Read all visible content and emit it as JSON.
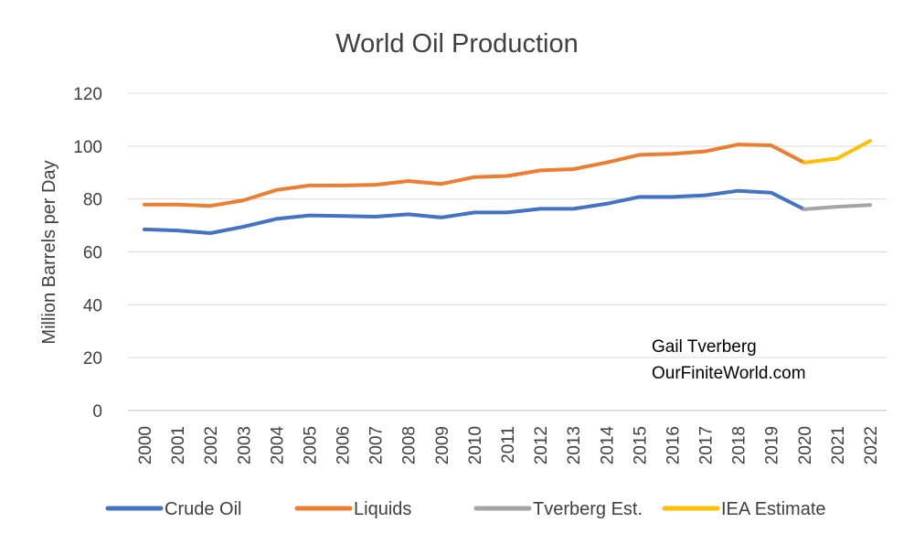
{
  "chart_data": {
    "type": "line",
    "title": "World Oil Production",
    "xlabel": "",
    "ylabel": "Million Barrels per Day",
    "ylim": [
      0,
      120
    ],
    "yticks": [
      0,
      20,
      40,
      60,
      80,
      100,
      120
    ],
    "grid": true,
    "legend_position": "bottom",
    "annotations": [
      "Gail Tverberg",
      "OurFiniteWorld.com"
    ],
    "categories": [
      "2000",
      "2001",
      "2002",
      "2003",
      "2004",
      "2005",
      "2006",
      "2007",
      "2008",
      "2009",
      "2010",
      "2011",
      "2012",
      "2013",
      "2014",
      "2015",
      "2016",
      "2017",
      "2018",
      "2019",
      "2020",
      "2021",
      "2022"
    ],
    "series": [
      {
        "name": "Crude Oil",
        "color": "#4472c4",
        "x": [
          "2000",
          "2001",
          "2002",
          "2003",
          "2004",
          "2005",
          "2006",
          "2007",
          "2008",
          "2009",
          "2010",
          "2011",
          "2012",
          "2013",
          "2014",
          "2015",
          "2016",
          "2017",
          "2018",
          "2019",
          "2020"
        ],
        "values": [
          68.5,
          68.1,
          67.1,
          69.5,
          72.5,
          73.8,
          73.6,
          73.3,
          74.2,
          73.0,
          74.9,
          74.9,
          76.3,
          76.3,
          78.2,
          80.8,
          80.8,
          81.4,
          83.1,
          82.4,
          76.1
        ]
      },
      {
        "name": "Liquids",
        "color": "#ed7d31",
        "x": [
          "2000",
          "2001",
          "2002",
          "2003",
          "2004",
          "2005",
          "2006",
          "2007",
          "2008",
          "2009",
          "2010",
          "2011",
          "2012",
          "2013",
          "2014",
          "2015",
          "2016",
          "2017",
          "2018",
          "2019",
          "2020"
        ],
        "values": [
          77.9,
          77.9,
          77.4,
          79.5,
          83.4,
          85.1,
          85.1,
          85.4,
          86.8,
          85.7,
          88.3,
          88.7,
          90.8,
          91.3,
          93.8,
          96.7,
          97.1,
          98.0,
          100.6,
          100.3,
          93.8
        ]
      },
      {
        "name": "Tverberg Est.",
        "color": "#a5a5a5",
        "x": [
          "2020",
          "2021",
          "2022"
        ],
        "values": [
          76.1,
          77.1,
          77.7
        ]
      },
      {
        "name": "IEA Estimate",
        "color": "#ffc000",
        "x": [
          "2020",
          "2021",
          "2022"
        ],
        "values": [
          93.8,
          95.3,
          102.0
        ]
      }
    ]
  }
}
